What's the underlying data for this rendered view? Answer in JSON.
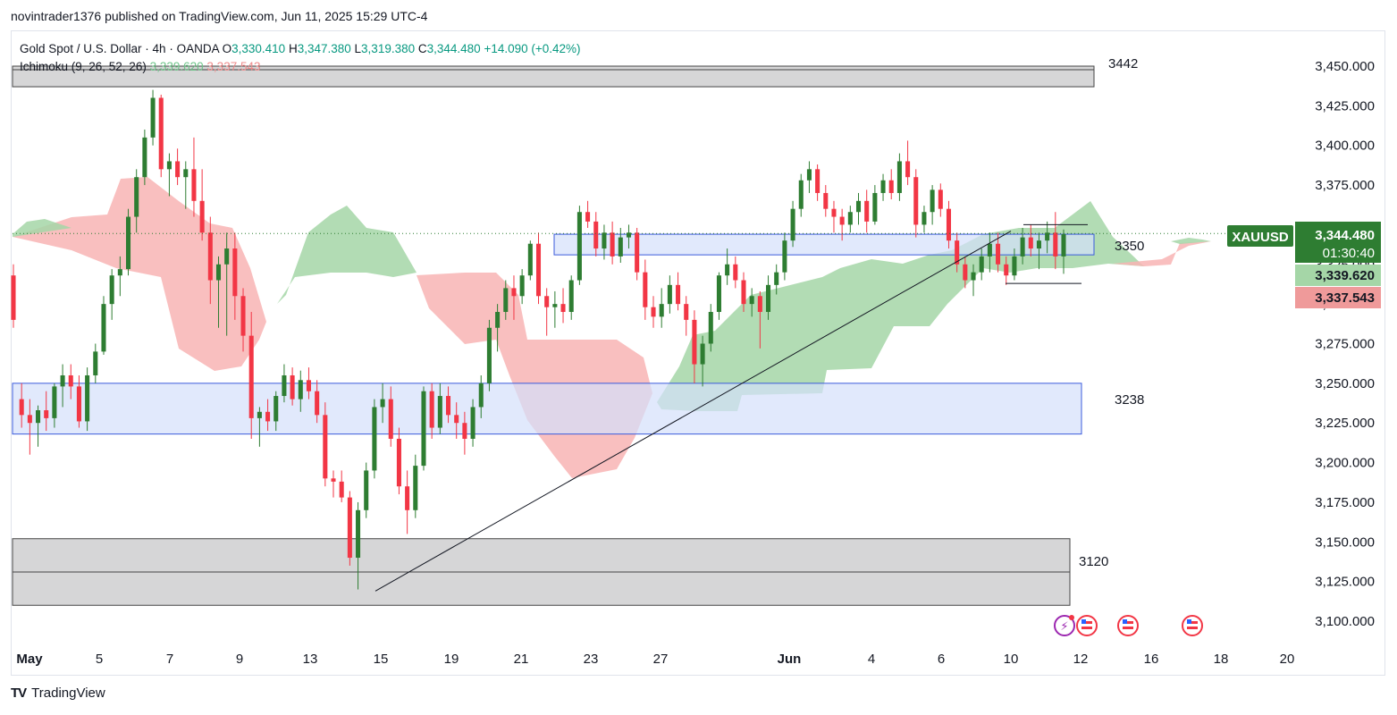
{
  "header": {
    "publisher": "novintrader1376 published on TradingView.com, Jun 11, 2025 15:29 UTC-4"
  },
  "legend": {
    "symbol": "Gold Spot / U.S. Dollar · 4h · OANDA",
    "open_label": "O",
    "open": "3,330.410",
    "high_label": "H",
    "high": "3,347.380",
    "low_label": "L",
    "low": "3,319.380",
    "close_label": "C",
    "close": "3,344.480",
    "change": "+14.090 (+0.42%)",
    "indicator": "Ichimoku (9, 26, 52, 26)",
    "indicator_v1": "3,339.620",
    "indicator_v2": "3,337.543"
  },
  "price_labels": {
    "symbol": "XAUUSD",
    "last": "3,344.480",
    "countdown": "01:30:40",
    "span_a": "3,339.620",
    "span_b": "3,337.543"
  },
  "footer": {
    "brand": "TradingView"
  },
  "colors": {
    "up": "#2e7d32",
    "down": "#f23645",
    "cloud_bull": "#a5d6a7",
    "cloud_bear": "#f8b4b4",
    "zone_blue": "#d4e0fb",
    "zone_blue_border": "#3b5bdb",
    "zone_gray": "#d1d1d3",
    "last_price_bg": "#2e7d32",
    "span_b_bg": "#ef9a9a"
  },
  "chart_data": {
    "type": "candlestick",
    "timeframe": "4h",
    "ylim": [
      3090,
      3460
    ],
    "y_ticks": [
      "3,100.000",
      "3,125.000",
      "3,150.000",
      "3,175.000",
      "3,200.000",
      "3,225.000",
      "3,250.000",
      "3,275.000",
      "3,300.000",
      "3,325.000",
      "3,350.000",
      "3,375.000",
      "3,400.000",
      "3,425.000",
      "3,450.000"
    ],
    "x_ticks": [
      "May",
      "5",
      "7",
      "9",
      "13",
      "15",
      "19",
      "21",
      "23",
      "27",
      "Jun",
      "4",
      "6",
      "10",
      "12",
      "16",
      "18",
      "20"
    ],
    "zones": [
      {
        "label": "3442",
        "low": 3437,
        "high": 3450,
        "color": "gray"
      },
      {
        "label": "3350",
        "low": 3331,
        "high": 3344,
        "color": "blue"
      },
      {
        "label": "3238",
        "low": 3218,
        "high": 3250,
        "color": "blue"
      },
      {
        "label": "3120",
        "low": 3110,
        "high": 3152,
        "color": "gray"
      }
    ],
    "trendline": {
      "from": {
        "date": "May 15",
        "price": 3119
      },
      "to": {
        "date": "Jun 9",
        "price": 3346
      }
    },
    "box": {
      "high": 3350,
      "low": 3313
    },
    "candles": [
      {
        "o": 3318,
        "h": 3325,
        "l": 3285,
        "c": 3290
      },
      {
        "o": 3240,
        "h": 3250,
        "l": 3222,
        "c": 3230
      },
      {
        "o": 3230,
        "h": 3240,
        "l": 3205,
        "c": 3225
      },
      {
        "o": 3225,
        "h": 3236,
        "l": 3210,
        "c": 3233
      },
      {
        "o": 3233,
        "h": 3245,
        "l": 3220,
        "c": 3228
      },
      {
        "o": 3228,
        "h": 3250,
        "l": 3222,
        "c": 3248
      },
      {
        "o": 3248,
        "h": 3262,
        "l": 3235,
        "c": 3255
      },
      {
        "o": 3255,
        "h": 3262,
        "l": 3240,
        "c": 3248
      },
      {
        "o": 3248,
        "h": 3255,
        "l": 3222,
        "c": 3226
      },
      {
        "o": 3226,
        "h": 3260,
        "l": 3220,
        "c": 3255
      },
      {
        "o": 3255,
        "h": 3275,
        "l": 3250,
        "c": 3270
      },
      {
        "o": 3270,
        "h": 3305,
        "l": 3268,
        "c": 3300
      },
      {
        "o": 3300,
        "h": 3322,
        "l": 3290,
        "c": 3318
      },
      {
        "o": 3318,
        "h": 3330,
        "l": 3305,
        "c": 3322
      },
      {
        "o": 3322,
        "h": 3360,
        "l": 3318,
        "c": 3355
      },
      {
        "o": 3355,
        "h": 3385,
        "l": 3345,
        "c": 3380
      },
      {
        "o": 3380,
        "h": 3410,
        "l": 3375,
        "c": 3405
      },
      {
        "o": 3405,
        "h": 3435,
        "l": 3400,
        "c": 3430
      },
      {
        "o": 3430,
        "h": 3432,
        "l": 3380,
        "c": 3385
      },
      {
        "o": 3385,
        "h": 3395,
        "l": 3368,
        "c": 3390
      },
      {
        "o": 3390,
        "h": 3398,
        "l": 3375,
        "c": 3380
      },
      {
        "o": 3380,
        "h": 3390,
        "l": 3360,
        "c": 3385
      },
      {
        "o": 3385,
        "h": 3405,
        "l": 3355,
        "c": 3365
      },
      {
        "o": 3365,
        "h": 3385,
        "l": 3340,
        "c": 3345
      },
      {
        "o": 3345,
        "h": 3355,
        "l": 3300,
        "c": 3315
      },
      {
        "o": 3315,
        "h": 3330,
        "l": 3285,
        "c": 3325
      },
      {
        "o": 3325,
        "h": 3345,
        "l": 3280,
        "c": 3335
      },
      {
        "o": 3335,
        "h": 3345,
        "l": 3290,
        "c": 3305
      },
      {
        "o": 3305,
        "h": 3310,
        "l": 3270,
        "c": 3280
      },
      {
        "o": 3280,
        "h": 3295,
        "l": 3215,
        "c": 3228
      },
      {
        "o": 3228,
        "h": 3235,
        "l": 3210,
        "c": 3232
      },
      {
        "o": 3232,
        "h": 3240,
        "l": 3220,
        "c": 3226
      },
      {
        "o": 3226,
        "h": 3245,
        "l": 3220,
        "c": 3242
      },
      {
        "o": 3242,
        "h": 3262,
        "l": 3238,
        "c": 3255
      },
      {
        "o": 3255,
        "h": 3260,
        "l": 3236,
        "c": 3240
      },
      {
        "o": 3240,
        "h": 3258,
        "l": 3232,
        "c": 3252
      },
      {
        "o": 3252,
        "h": 3260,
        "l": 3240,
        "c": 3245
      },
      {
        "o": 3245,
        "h": 3252,
        "l": 3225,
        "c": 3230
      },
      {
        "o": 3230,
        "h": 3238,
        "l": 3185,
        "c": 3190
      },
      {
        "o": 3190,
        "h": 3195,
        "l": 3178,
        "c": 3188
      },
      {
        "o": 3188,
        "h": 3195,
        "l": 3175,
        "c": 3178
      },
      {
        "o": 3178,
        "h": 3182,
        "l": 3135,
        "c": 3140
      },
      {
        "o": 3140,
        "h": 3175,
        "l": 3120,
        "c": 3170
      },
      {
        "o": 3170,
        "h": 3200,
        "l": 3165,
        "c": 3195
      },
      {
        "o": 3195,
        "h": 3240,
        "l": 3190,
        "c": 3235
      },
      {
        "o": 3235,
        "h": 3250,
        "l": 3225,
        "c": 3240
      },
      {
        "o": 3240,
        "h": 3248,
        "l": 3210,
        "c": 3215
      },
      {
        "o": 3215,
        "h": 3222,
        "l": 3180,
        "c": 3185
      },
      {
        "o": 3185,
        "h": 3195,
        "l": 3155,
        "c": 3170
      },
      {
        "o": 3170,
        "h": 3205,
        "l": 3165,
        "c": 3198
      },
      {
        "o": 3198,
        "h": 3248,
        "l": 3195,
        "c": 3245
      },
      {
        "o": 3245,
        "h": 3250,
        "l": 3215,
        "c": 3222
      },
      {
        "o": 3222,
        "h": 3250,
        "l": 3218,
        "c": 3242
      },
      {
        "o": 3242,
        "h": 3248,
        "l": 3225,
        "c": 3230
      },
      {
        "o": 3230,
        "h": 3238,
        "l": 3215,
        "c": 3225
      },
      {
        "o": 3225,
        "h": 3232,
        "l": 3205,
        "c": 3215
      },
      {
        "o": 3215,
        "h": 3240,
        "l": 3210,
        "c": 3235
      },
      {
        "o": 3235,
        "h": 3255,
        "l": 3228,
        "c": 3250
      },
      {
        "o": 3250,
        "h": 3290,
        "l": 3245,
        "c": 3285
      },
      {
        "o": 3285,
        "h": 3300,
        "l": 3270,
        "c": 3295
      },
      {
        "o": 3295,
        "h": 3315,
        "l": 3290,
        "c": 3310
      },
      {
        "o": 3310,
        "h": 3318,
        "l": 3290,
        "c": 3305
      },
      {
        "o": 3305,
        "h": 3322,
        "l": 3300,
        "c": 3318
      },
      {
        "o": 3318,
        "h": 3340,
        "l": 3315,
        "c": 3338
      },
      {
        "o": 3338,
        "h": 3345,
        "l": 3300,
        "c": 3305
      },
      {
        "o": 3305,
        "h": 3310,
        "l": 3280,
        "c": 3298
      },
      {
        "o": 3298,
        "h": 3308,
        "l": 3285,
        "c": 3300
      },
      {
        "o": 3300,
        "h": 3310,
        "l": 3288,
        "c": 3295
      },
      {
        "o": 3295,
        "h": 3318,
        "l": 3290,
        "c": 3315
      },
      {
        "o": 3315,
        "h": 3362,
        "l": 3312,
        "c": 3358
      },
      {
        "o": 3358,
        "h": 3365,
        "l": 3348,
        "c": 3352
      },
      {
        "o": 3352,
        "h": 3358,
        "l": 3330,
        "c": 3335
      },
      {
        "o": 3335,
        "h": 3350,
        "l": 3328,
        "c": 3345
      },
      {
        "o": 3345,
        "h": 3352,
        "l": 3325,
        "c": 3330
      },
      {
        "o": 3330,
        "h": 3348,
        "l": 3326,
        "c": 3342
      },
      {
        "o": 3342,
        "h": 3350,
        "l": 3335,
        "c": 3345
      },
      {
        "o": 3345,
        "h": 3348,
        "l": 3315,
        "c": 3320
      },
      {
        "o": 3320,
        "h": 3328,
        "l": 3290,
        "c": 3298
      },
      {
        "o": 3298,
        "h": 3305,
        "l": 3285,
        "c": 3292
      },
      {
        "o": 3292,
        "h": 3310,
        "l": 3285,
        "c": 3300
      },
      {
        "o": 3300,
        "h": 3318,
        "l": 3294,
        "c": 3312
      },
      {
        "o": 3312,
        "h": 3320,
        "l": 3296,
        "c": 3300
      },
      {
        "o": 3300,
        "h": 3305,
        "l": 3280,
        "c": 3290
      },
      {
        "o": 3290,
        "h": 3296,
        "l": 3250,
        "c": 3262
      },
      {
        "o": 3262,
        "h": 3280,
        "l": 3248,
        "c": 3275
      },
      {
        "o": 3275,
        "h": 3300,
        "l": 3270,
        "c": 3295
      },
      {
        "o": 3295,
        "h": 3320,
        "l": 3290,
        "c": 3318
      },
      {
        "o": 3318,
        "h": 3335,
        "l": 3312,
        "c": 3325
      },
      {
        "o": 3325,
        "h": 3330,
        "l": 3310,
        "c": 3315
      },
      {
        "o": 3315,
        "h": 3320,
        "l": 3295,
        "c": 3300
      },
      {
        "o": 3300,
        "h": 3310,
        "l": 3292,
        "c": 3305
      },
      {
        "o": 3305,
        "h": 3308,
        "l": 3272,
        "c": 3295
      },
      {
        "o": 3295,
        "h": 3318,
        "l": 3290,
        "c": 3312
      },
      {
        "o": 3312,
        "h": 3325,
        "l": 3306,
        "c": 3320
      },
      {
        "o": 3320,
        "h": 3345,
        "l": 3315,
        "c": 3340
      },
      {
        "o": 3340,
        "h": 3365,
        "l": 3336,
        "c": 3360
      },
      {
        "o": 3360,
        "h": 3382,
        "l": 3355,
        "c": 3378
      },
      {
        "o": 3378,
        "h": 3390,
        "l": 3370,
        "c": 3385
      },
      {
        "o": 3385,
        "h": 3388,
        "l": 3365,
        "c": 3370
      },
      {
        "o": 3370,
        "h": 3375,
        "l": 3355,
        "c": 3360
      },
      {
        "o": 3360,
        "h": 3365,
        "l": 3345,
        "c": 3355
      },
      {
        "o": 3355,
        "h": 3360,
        "l": 3340,
        "c": 3350
      },
      {
        "o": 3350,
        "h": 3362,
        "l": 3345,
        "c": 3358
      },
      {
        "o": 3358,
        "h": 3370,
        "l": 3350,
        "c": 3365
      },
      {
        "o": 3365,
        "h": 3372,
        "l": 3345,
        "c": 3352
      },
      {
        "o": 3352,
        "h": 3375,
        "l": 3350,
        "c": 3370
      },
      {
        "o": 3370,
        "h": 3382,
        "l": 3365,
        "c": 3378
      },
      {
        "o": 3378,
        "h": 3385,
        "l": 3366,
        "c": 3370
      },
      {
        "o": 3370,
        "h": 3395,
        "l": 3365,
        "c": 3390
      },
      {
        "o": 3390,
        "h": 3403,
        "l": 3375,
        "c": 3380
      },
      {
        "o": 3380,
        "h": 3385,
        "l": 3342,
        "c": 3350
      },
      {
        "o": 3350,
        "h": 3362,
        "l": 3345,
        "c": 3358
      },
      {
        "o": 3358,
        "h": 3375,
        "l": 3350,
        "c": 3372
      },
      {
        "o": 3372,
        "h": 3376,
        "l": 3355,
        "c": 3360
      },
      {
        "o": 3360,
        "h": 3365,
        "l": 3335,
        "c": 3340
      },
      {
        "o": 3340,
        "h": 3345,
        "l": 3320,
        "c": 3325
      },
      {
        "o": 3325,
        "h": 3330,
        "l": 3310,
        "c": 3315
      },
      {
        "o": 3315,
        "h": 3325,
        "l": 3305,
        "c": 3320
      },
      {
        "o": 3320,
        "h": 3335,
        "l": 3315,
        "c": 3330
      },
      {
        "o": 3330,
        "h": 3345,
        "l": 3320,
        "c": 3338
      },
      {
        "o": 3338,
        "h": 3345,
        "l": 3320,
        "c": 3325
      },
      {
        "o": 3325,
        "h": 3330,
        "l": 3312,
        "c": 3318
      },
      {
        "o": 3318,
        "h": 3335,
        "l": 3315,
        "c": 3330
      },
      {
        "o": 3330,
        "h": 3348,
        "l": 3325,
        "c": 3342
      },
      {
        "o": 3342,
        "h": 3350,
        "l": 3330,
        "c": 3335
      },
      {
        "o": 3335,
        "h": 3345,
        "l": 3322,
        "c": 3340
      },
      {
        "o": 3340,
        "h": 3352,
        "l": 3332,
        "c": 3345
      },
      {
        "o": 3345,
        "h": 3358,
        "l": 3322,
        "c": 3330
      },
      {
        "o": 3330,
        "h": 3347,
        "l": 3319,
        "c": 3344
      }
    ]
  }
}
